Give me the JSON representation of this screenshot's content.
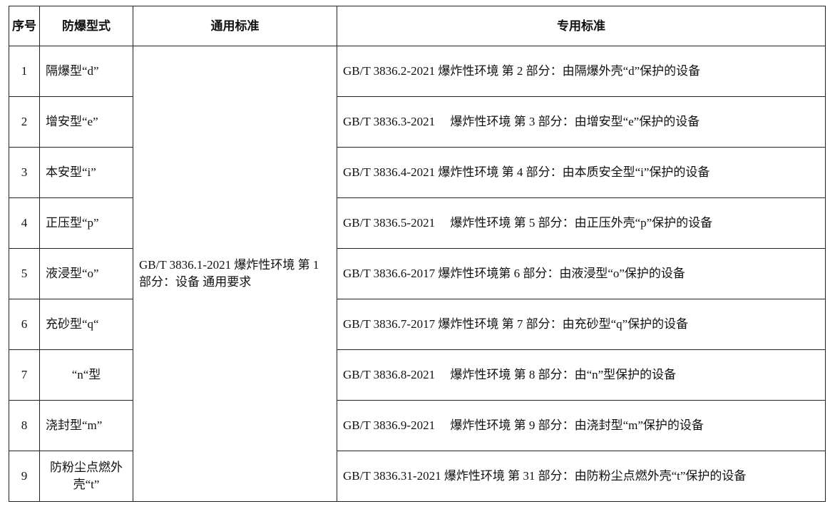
{
  "headers": [
    "序号",
    "防爆型式",
    "通用标准",
    "专用标准"
  ],
  "general_standard": "GB/T 3836.1-2021 爆炸性环境 第 1 部分：设备 通用要求",
  "rows": [
    {
      "no": "1",
      "type": "隔爆型“d”",
      "standard": "GB/T 3836.2-2021 爆炸性环境 第 2 部分：由隔爆外壳“d”保护的设备"
    },
    {
      "no": "2",
      "type": "增安型“e”",
      "standard": "GB/T 3836.3-2021　 爆炸性环境 第 3 部分：由增安型“e”保护的设备"
    },
    {
      "no": "3",
      "type": "本安型“i”",
      "standard": "GB/T 3836.4-2021 爆炸性环境 第 4 部分：由本质安全型“i”保护的设备"
    },
    {
      "no": "4",
      "type": "正压型“p”",
      "standard": "GB/T 3836.5-2021　 爆炸性环境 第 5 部分：由正压外壳“p”保护的设备"
    },
    {
      "no": "5",
      "type": "液浸型“o”",
      "standard": "GB/T 3836.6-2017 爆炸性环境第 6 部分：由液浸型“o”保护的设备"
    },
    {
      "no": "6",
      "type": "充砂型“q“",
      "standard": "GB/T 3836.7-2017 爆炸性环境 第 7 部分：由充砂型“q”保护的设备"
    },
    {
      "no": "7",
      "type": "“n“型",
      "standard": "GB/T 3836.8-2021　 爆炸性环境 第 8 部分：由“n”型保护的设备"
    },
    {
      "no": "8",
      "type": "浇封型“m”",
      "standard": "GB/T 3836.9-2021　 爆炸性环境 第 9 部分：由浇封型“m”保护的设备"
    },
    {
      "no": "9",
      "type": "防粉尘点燃外壳“t”",
      "standard": "GB/T 3836.31-2021 爆炸性环境 第 31 部分：由防粉尘点燃外壳“t”保护的设备"
    }
  ]
}
